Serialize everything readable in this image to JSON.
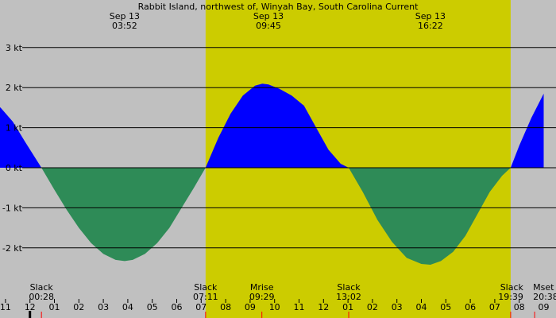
{
  "title": "Rabbit Island, northwest of, Winyah Bay, South Carolina Current",
  "colors": {
    "night": "#c0c0c0",
    "day": "#cccc00",
    "flood": "#0000ff",
    "ebb": "#2e8b57",
    "grid": "#000000",
    "tick_major": "#000000",
    "tick_red": "#ff0000"
  },
  "top_labels": [
    {
      "date": "Sep 13",
      "time": "03:52",
      "hour": 3.87
    },
    {
      "date": "Sep 13",
      "time": "09:45",
      "hour": 9.75
    },
    {
      "date": "Sep 13",
      "time": "16:22",
      "hour": 16.37
    },
    {
      "date": "Sep 13",
      "time": "",
      "hour": 22.1
    }
  ],
  "day_band": {
    "start_hour": 7.18,
    "end_hour": 19.65
  },
  "events": [
    {
      "label": "Slack",
      "time": "00:28",
      "hour": 0.47
    },
    {
      "label": "Slack",
      "time": "07:11",
      "hour": 7.18
    },
    {
      "label": "Mrise",
      "time": "09:29",
      "hour": 9.48
    },
    {
      "label": "Slack",
      "time": "13:02",
      "hour": 13.03
    },
    {
      "label": "Slack",
      "time": "19:39",
      "hour": 19.65
    },
    {
      "label": "Mset",
      "time": "20:38",
      "hour": 20.63
    }
  ],
  "chart_data": {
    "type": "area",
    "title": "Rabbit Island, northwest of, Winyah Bay, South Carolina Current",
    "xlabel": "",
    "ylabel": "",
    "x_unit": "hour",
    "ylim": [
      -2.95,
      3.0
    ],
    "xlim": [
      -1.65,
      21.0
    ],
    "y_ticks": [
      3,
      2,
      1,
      0,
      -1,
      -2
    ],
    "y_tick_labels": [
      "3 kt",
      "2 kt",
      "1 kt",
      "0 kt",
      "-1 kt",
      "-2 kt"
    ],
    "x_ticks": [
      -1,
      0,
      1,
      2,
      3,
      4,
      5,
      6,
      7,
      8,
      9,
      10,
      11,
      12,
      13,
      14,
      15,
      16,
      17,
      18,
      19,
      20
    ],
    "x_tick_labels": [
      "11",
      "12",
      "01",
      "02",
      "03",
      "04",
      "05",
      "06",
      "07",
      "08",
      "09",
      "10",
      "11",
      "12",
      "01",
      "02",
      "03",
      "04",
      "05",
      "06",
      "07",
      "08"
    ],
    "extra_x_labels": [
      {
        "hour": 21.0,
        "label": "09"
      }
    ],
    "grid": true,
    "series": [
      {
        "x": [
          -1.65,
          -1.2,
          -0.7,
          -0.2,
          0.47,
          1.0,
          1.5,
          2.0,
          2.5,
          3.0,
          3.5,
          3.87,
          4.2,
          4.7,
          5.2,
          5.7,
          6.2,
          6.7,
          7.18,
          7.7,
          8.2,
          8.7,
          9.2,
          9.5,
          9.75,
          10.2,
          10.7,
          11.2,
          11.7,
          12.2,
          12.7,
          13.03,
          13.6,
          14.2,
          14.8,
          15.4,
          16.0,
          16.37,
          16.8,
          17.3,
          17.8,
          18.3,
          18.8,
          19.3,
          19.65,
          20.0,
          20.5,
          21.0
        ],
        "y": [
          1.65,
          1.5,
          1.15,
          0.65,
          0.0,
          -0.55,
          -1.05,
          -1.5,
          -1.88,
          -2.15,
          -2.3,
          -2.33,
          -2.3,
          -2.15,
          -1.88,
          -1.5,
          -1.0,
          -0.5,
          0.0,
          0.75,
          1.35,
          1.8,
          2.05,
          2.1,
          2.08,
          1.97,
          1.8,
          1.55,
          1.0,
          0.45,
          0.1,
          0.0,
          -0.6,
          -1.3,
          -1.85,
          -2.25,
          -2.4,
          -2.42,
          -2.33,
          -2.1,
          -1.7,
          -1.15,
          -0.6,
          -0.2,
          0.0,
          0.55,
          1.25,
          1.85
        ]
      }
    ]
  }
}
